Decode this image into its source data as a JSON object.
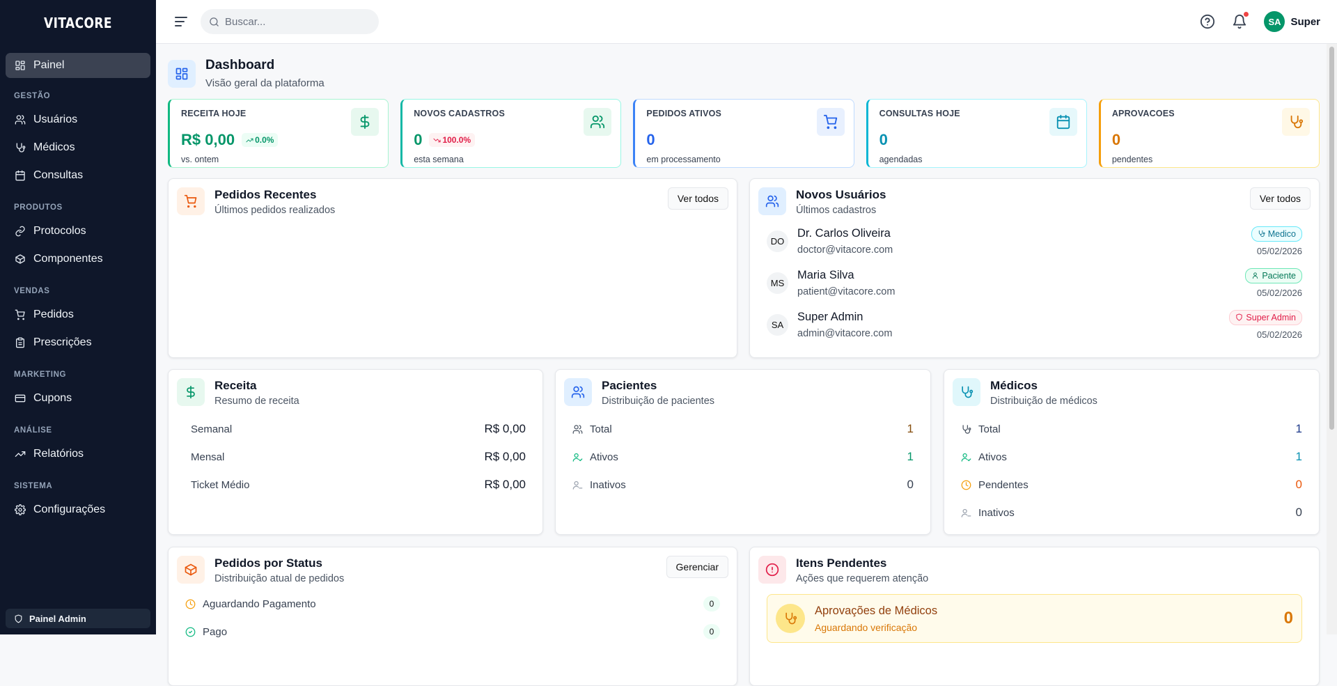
{
  "app": {
    "logo": "VITACORE"
  },
  "sidebar": {
    "active": {
      "label": "Painel",
      "icon": "grid-icon"
    },
    "sections": [
      {
        "title": "GESTÃO",
        "items": [
          {
            "label": "Usuários",
            "icon": "users-icon"
          },
          {
            "label": "Médicos",
            "icon": "stethoscope-icon"
          },
          {
            "label": "Consultas",
            "icon": "calendar-icon"
          }
        ]
      },
      {
        "title": "PRODUTOS",
        "items": [
          {
            "label": "Protocolos",
            "icon": "link-icon"
          },
          {
            "label": "Componentes",
            "icon": "package-icon"
          }
        ]
      },
      {
        "title": "VENDAS",
        "items": [
          {
            "label": "Pedidos",
            "icon": "cart-icon"
          },
          {
            "label": "Prescrições",
            "icon": "clipboard-icon"
          }
        ]
      },
      {
        "title": "MARKETING",
        "items": [
          {
            "label": "Cupons",
            "icon": "card-icon"
          }
        ]
      },
      {
        "title": "ANÁLISE",
        "items": [
          {
            "label": "Relatórios",
            "icon": "trending-up-icon"
          }
        ]
      },
      {
        "title": "SISTEMA",
        "items": [
          {
            "label": "Configurações",
            "icon": "gear-icon"
          }
        ]
      }
    ],
    "footer": "Painel Admin"
  },
  "header": {
    "search_placeholder": "Buscar...",
    "user_initials": "SA",
    "user_name": "Super",
    "has_notification": true
  },
  "page": {
    "title": "Dashboard",
    "subtitle": "Visão geral da plataforma"
  },
  "stats": [
    {
      "label": "RECEITA HOJE",
      "value": "R$ 0,00",
      "change": "0.0%",
      "change_dir": "up",
      "sub": "vs. ontem",
      "color": "#059669",
      "icon": "dollar-icon"
    },
    {
      "label": "NOVOS CADASTROS",
      "value": "0",
      "change": "100.0%",
      "change_dir": "down",
      "sub": "esta semana",
      "color": "#059669",
      "icon": "users-icon"
    },
    {
      "label": "PEDIDOS ATIVOS",
      "value": "0",
      "sub": "em processamento",
      "color": "#2563eb",
      "icon": "cart-icon"
    },
    {
      "label": "CONSULTAS HOJE",
      "value": "0",
      "sub": "agendadas",
      "color": "#0891b2",
      "icon": "calendar-icon"
    },
    {
      "label": "APROVACOES",
      "value": "0",
      "sub": "pendentes",
      "color": "#d97706",
      "icon": "stethoscope-icon"
    }
  ],
  "recent_orders": {
    "title": "Pedidos Recentes",
    "subtitle": "Últimos pedidos realizados",
    "button": "Ver todos"
  },
  "new_users": {
    "title": "Novos Usuários",
    "subtitle": "Últimos cadastros",
    "button": "Ver todos",
    "users": [
      {
        "initials": "DO",
        "name": "Dr. Carlos Oliveira",
        "email": "doctor@vitacore.com",
        "role": "Medico",
        "date": "05/02/2026"
      },
      {
        "initials": "MS",
        "name": "Maria Silva",
        "email": "patient@vitacore.com",
        "role": "Paciente",
        "date": "05/02/2026"
      },
      {
        "initials": "SA",
        "name": "Super Admin",
        "email": "admin@vitacore.com",
        "role": "Super Admin",
        "date": "05/02/2026"
      }
    ]
  },
  "revenue": {
    "title": "Receita",
    "subtitle": "Resumo de receita",
    "rows": [
      {
        "label": "Semanal",
        "value": "R$ 0,00"
      },
      {
        "label": "Mensal",
        "value": "R$ 0,00"
      },
      {
        "label": "Ticket Médio",
        "value": "R$ 0,00"
      }
    ]
  },
  "patients": {
    "title": "Pacientes",
    "subtitle": "Distribuição de pacientes",
    "rows": [
      {
        "label": "Total",
        "value": "1"
      },
      {
        "label": "Ativos",
        "value": "1"
      },
      {
        "label": "Inativos",
        "value": "0"
      }
    ]
  },
  "doctors": {
    "title": "Médicos",
    "subtitle": "Distribuição de médicos",
    "rows": [
      {
        "label": "Total",
        "value": "1"
      },
      {
        "label": "Ativos",
        "value": "1"
      },
      {
        "label": "Pendentes",
        "value": "0"
      },
      {
        "label": "Inativos",
        "value": "0"
      }
    ]
  },
  "orders_status": {
    "title": "Pedidos por Status",
    "subtitle": "Distribuição atual de pedidos",
    "button": "Gerenciar",
    "rows": [
      {
        "label": "Aguardando Pagamento",
        "value": "0"
      },
      {
        "label": "Pago",
        "value": "0"
      }
    ]
  },
  "pending": {
    "title": "Itens Pendentes",
    "subtitle": "Ações que requerem atenção",
    "items": [
      {
        "title": "Aprovações de Médicos",
        "subtitle": "Aguardando verificação",
        "value": "0"
      }
    ]
  }
}
